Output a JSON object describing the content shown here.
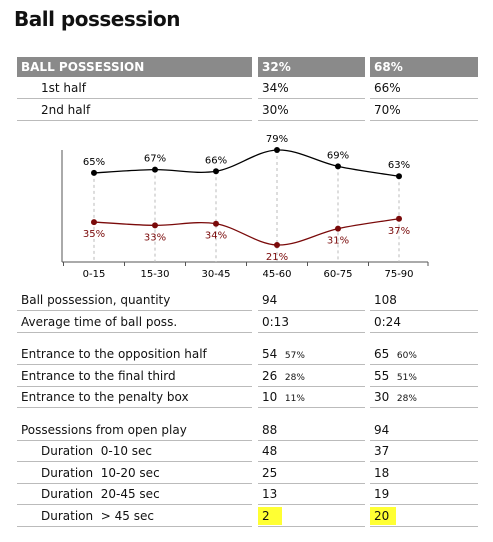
{
  "title": "Ball possession",
  "header": [
    "BALL POSSESSION",
    "32%",
    "68%"
  ],
  "top_rows": [
    [
      "1st half",
      "34%",
      "66%"
    ],
    [
      "2nd half",
      "30%",
      "70%"
    ]
  ],
  "chart_data": {
    "type": "line",
    "categories": [
      "0-15",
      "15-30",
      "30-45",
      "45-60",
      "60-75",
      "75-90"
    ],
    "series": [
      {
        "color": "#000000",
        "values": [
          65,
          67,
          66,
          79,
          69,
          63
        ],
        "value_labels": [
          "65%",
          "67%",
          "66%",
          "79%",
          "69%",
          "63%"
        ]
      },
      {
        "color": "#7a0a0a",
        "values": [
          35,
          33,
          34,
          21,
          31,
          37
        ],
        "value_labels": [
          "35%",
          "33%",
          "34%",
          "21%",
          "31%",
          "37%"
        ]
      }
    ]
  },
  "groups": [
    [
      {
        "label": "Ball possession, quantity",
        "home": "94",
        "away": "108"
      },
      {
        "label": "Average time of ball poss.",
        "home": "0:13",
        "away": "0:24"
      }
    ],
    [
      {
        "label": "Entrance to the opposition half",
        "home": "54",
        "home_pct": "57%",
        "away": "65",
        "away_pct": "60%"
      },
      {
        "label": "Entrance to the final third",
        "home": "26",
        "home_pct": "28%",
        "away": "55",
        "away_pct": "51%"
      },
      {
        "label": "Entrance to the penalty box",
        "home": "10",
        "home_pct": "11%",
        "away": "30",
        "away_pct": "28%"
      }
    ],
    [
      {
        "label": "Possessions from open play",
        "home": "88",
        "away": "94"
      },
      {
        "label": "Duration  0-10 sec",
        "home": "48",
        "away": "37",
        "indent": true
      },
      {
        "label": "Duration  10-20 sec",
        "home": "25",
        "away": "18",
        "indent": true
      },
      {
        "label": "Duration  20-45 sec",
        "home": "13",
        "away": "19",
        "indent": true
      },
      {
        "label": "Duration  > 45 sec",
        "home": "2",
        "away": "20",
        "indent": true,
        "highlight": true
      }
    ]
  ]
}
